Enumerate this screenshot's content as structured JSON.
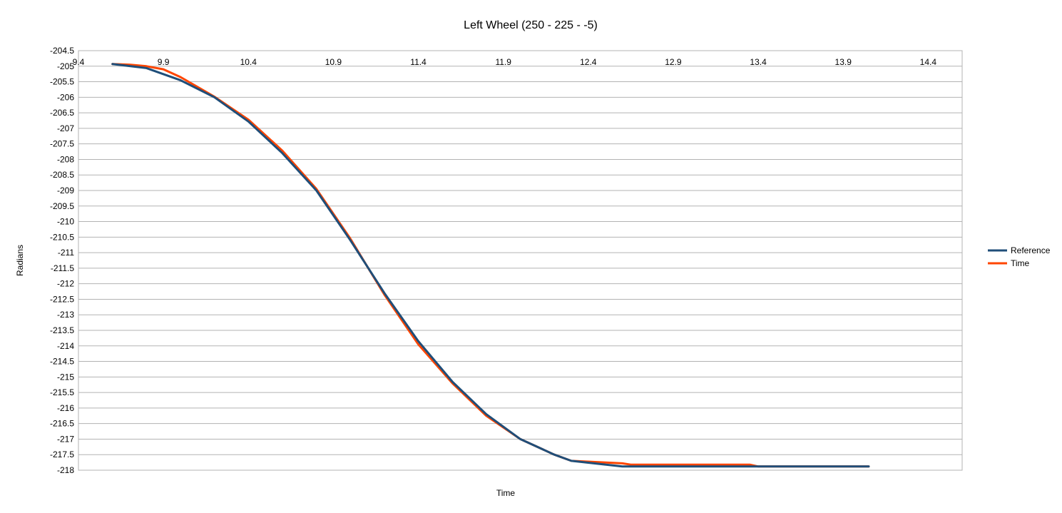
{
  "chart_data": {
    "type": "line",
    "title": "Left Wheel (250 - 225 - -5)",
    "xlabel": "Time",
    "ylabel": "Radians",
    "xlim": [
      9.4,
      14.6
    ],
    "ylim": [
      -218,
      -204.5
    ],
    "x_ticks": [
      "9.4",
      "9.9",
      "10.4",
      "10.9",
      "11.4",
      "11.9",
      "12.4",
      "12.9",
      "13.4",
      "13.9",
      "14.4"
    ],
    "x_tick_values": [
      9.4,
      9.9,
      10.4,
      10.9,
      11.4,
      11.9,
      12.4,
      12.9,
      13.4,
      13.9,
      14.4
    ],
    "y_ticks": [
      "-204.5",
      "-205",
      "-205.5",
      "-206",
      "-206.5",
      "-207",
      "-207.5",
      "-208",
      "-208.5",
      "-209",
      "-209.5",
      "-210",
      "-210.5",
      "-211",
      "-211.5",
      "-212",
      "-212.5",
      "-213",
      "-213.5",
      "-214",
      "-214.5",
      "-215",
      "-215.5",
      "-216",
      "-216.5",
      "-217",
      "-217.5",
      "-218"
    ],
    "y_tick_values": [
      -204.5,
      -205,
      -205.5,
      -206,
      -206.5,
      -207,
      -207.5,
      -208,
      -208.5,
      -209,
      -209.5,
      -210,
      -210.5,
      -211,
      -211.5,
      -212,
      -212.5,
      -213,
      -213.5,
      -214,
      -214.5,
      -215,
      -215.5,
      -216,
      -216.5,
      -217,
      -217.5,
      -218
    ],
    "grid": true,
    "legend_position": "right",
    "series": [
      {
        "name": "Reference",
        "color": "#1f4e79",
        "x": [
          9.6,
          9.8,
          10.0,
          10.2,
          10.4,
          10.6,
          10.8,
          11.0,
          11.2,
          11.4,
          11.6,
          11.8,
          12.0,
          12.2,
          12.3,
          12.6,
          12.9,
          13.2,
          13.5,
          14.05
        ],
        "y": [
          -204.93,
          -205.06,
          -205.45,
          -206.0,
          -206.78,
          -207.8,
          -209.0,
          -210.6,
          -212.3,
          -213.85,
          -215.15,
          -216.2,
          -217.0,
          -217.5,
          -217.7,
          -217.88,
          -217.88,
          -217.88,
          -217.88,
          -217.88
        ]
      },
      {
        "name": "Time",
        "color": "#ff4500",
        "x": [
          9.6,
          9.7,
          9.8,
          9.9,
          10.0,
          10.2,
          10.4,
          10.6,
          10.8,
          11.0,
          11.2,
          11.4,
          11.6,
          11.8,
          12.0,
          12.2,
          12.3,
          12.6,
          12.65,
          13.35,
          13.4,
          14.05
        ],
        "y": [
          -204.93,
          -204.95,
          -205.0,
          -205.1,
          -205.35,
          -205.98,
          -206.72,
          -207.72,
          -208.95,
          -210.55,
          -212.35,
          -213.95,
          -215.2,
          -216.25,
          -217.0,
          -217.5,
          -217.7,
          -217.78,
          -217.82,
          -217.82,
          -217.88,
          -217.88
        ]
      }
    ]
  }
}
